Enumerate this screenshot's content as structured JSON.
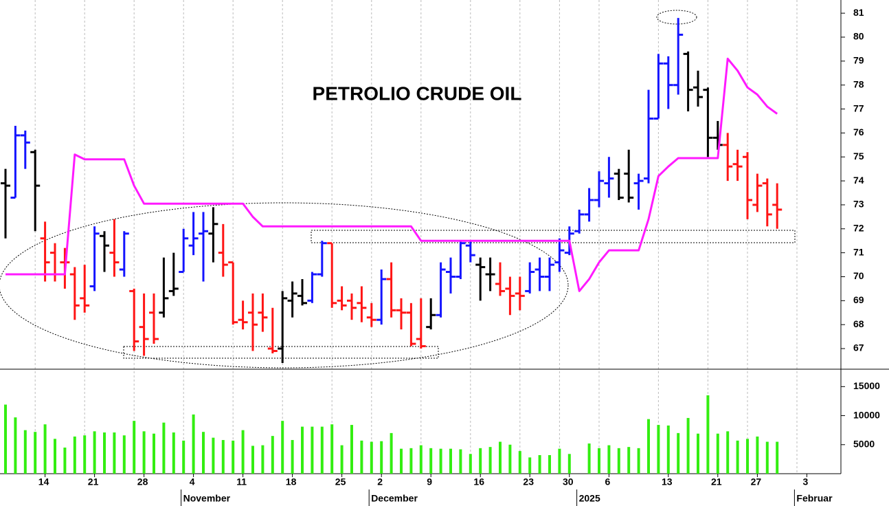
{
  "chart_data": {
    "type": "ohlc",
    "title": "PETROLIO CRUDE OIL",
    "categories": [
      null,
      null,
      null,
      null,
      "14",
      null,
      null,
      null,
      null,
      "21",
      null,
      null,
      null,
      null,
      "28",
      null,
      null,
      null,
      null,
      "4",
      null,
      null,
      null,
      null,
      "11",
      null,
      null,
      null,
      null,
      "18",
      null,
      null,
      null,
      null,
      "25",
      null,
      null,
      null,
      "2",
      null,
      null,
      null,
      null,
      "9",
      null,
      null,
      null,
      null,
      "16",
      null,
      null,
      null,
      null,
      "23",
      null,
      null,
      null,
      "30",
      null,
      null,
      null,
      "6",
      null,
      null,
      null,
      null,
      null,
      "13",
      null,
      null,
      null,
      null,
      "21",
      null,
      null,
      null,
      "27",
      null,
      null,
      null,
      null,
      "3"
    ],
    "month_categories": [
      null,
      null,
      null,
      null,
      null,
      null,
      null,
      null,
      null,
      null,
      null,
      null,
      null,
      null,
      null,
      null,
      null,
      null,
      null,
      "November",
      null,
      null,
      null,
      null,
      null,
      null,
      null,
      null,
      null,
      null,
      null,
      null,
      null,
      null,
      null,
      null,
      null,
      null,
      "December",
      null,
      null,
      null,
      null,
      null,
      null,
      null,
      null,
      null,
      null,
      null,
      null,
      null,
      null,
      null,
      null,
      null,
      null,
      null,
      null,
      "2025",
      null,
      null,
      null,
      null,
      null,
      null,
      null,
      null,
      null,
      null,
      null,
      null,
      null,
      null,
      null,
      null,
      null,
      null,
      null,
      null,
      null,
      "Februar"
    ],
    "open": [
      73.9,
      73.3,
      75.9,
      75.2,
      71.6,
      71.0,
      70.6,
      70.1,
      69.1,
      69.6,
      71.7,
      71.0,
      70.3,
      69.4,
      67.9,
      68.5,
      68.5,
      69.4,
      70.2,
      71.3,
      71.8,
      71.8,
      71.0,
      70.6,
      68.2,
      68.5,
      68.5,
      67.0,
      67.0,
      69.0,
      69.2,
      69.0,
      70.1,
      71.4,
      69.0,
      69.0,
      68.9,
      68.3,
      68.2,
      69.9,
      68.6,
      68.5,
      67.4,
      67.9,
      68.4,
      70.2,
      70.0,
      71.3,
      70.5,
      70.1,
      69.7,
      69.5,
      69.3,
      69.4,
      70.3,
      70.0,
      70.6,
      71.0,
      71.9,
      72.6,
      73.2,
      73.9,
      74.3,
      74.3,
      73.9,
      74.1,
      76.6,
      78.9,
      78.0,
      79.3,
      77.9,
      77.8,
      75.8,
      75.5,
      74.7,
      75.0,
      73.0,
      73.9,
      73.0,
      null,
      null,
      null
    ],
    "high": [
      74.5,
      76.3,
      76.1,
      75.3,
      72.3,
      71.4,
      71.2,
      70.4,
      70.5,
      72.1,
      71.9,
      72.4,
      71.9,
      69.5,
      69.3,
      69.3,
      70.8,
      71.0,
      72.0,
      72.7,
      72.7,
      72.9,
      72.2,
      70.6,
      69.0,
      69.3,
      69.3,
      68.7,
      69.4,
      69.8,
      69.9,
      70.2,
      71.5,
      71.4,
      69.6,
      69.3,
      69.6,
      68.9,
      70.3,
      70.6,
      69.1,
      68.9,
      69.1,
      69.1,
      70.6,
      70.8,
      71.5,
      71.5,
      70.8,
      70.8,
      70.6,
      70.0,
      70.0,
      70.6,
      70.8,
      70.8,
      71.6,
      72.1,
      72.8,
      73.7,
      74.4,
      75.0,
      74.5,
      75.3,
      74.3,
      77.8,
      79.3,
      79.2,
      80.8,
      79.4,
      78.6,
      77.9,
      76.5,
      76.0,
      75.3,
      75.2,
      74.3,
      74.1,
      73.9,
      null,
      null,
      null
    ],
    "low": [
      71.6,
      73.3,
      74.5,
      71.9,
      69.8,
      69.8,
      69.5,
      68.2,
      68.5,
      69.4,
      70.2,
      70.0,
      70.0,
      66.9,
      66.7,
      67.2,
      68.3,
      69.2,
      70.2,
      70.9,
      69.8,
      70.6,
      70.0,
      68.0,
      67.8,
      66.9,
      67.7,
      66.8,
      66.4,
      68.3,
      68.8,
      68.9,
      70.0,
      68.7,
      68.6,
      68.2,
      68.1,
      67.9,
      68.0,
      68.3,
      67.8,
      67.1,
      67.0,
      67.8,
      68.3,
      69.3,
      69.9,
      70.6,
      69.0,
      69.4,
      69.2,
      68.4,
      68.6,
      69.3,
      69.4,
      69.4,
      70.2,
      70.9,
      71.8,
      72.3,
      72.9,
      73.3,
      73.2,
      73.1,
      72.8,
      73.9,
      76.6,
      77.0,
      77.6,
      76.9,
      77.1,
      75.0,
      75.3,
      74.0,
      74.0,
      72.4,
      72.7,
      72.1,
      72.0,
      null,
      null,
      null
    ],
    "close": [
      73.8,
      75.9,
      75.6,
      73.8,
      70.6,
      70.1,
      70.6,
      68.8,
      68.8,
      71.8,
      71.3,
      70.6,
      71.8,
      67.3,
      67.4,
      67.4,
      69.1,
      69.5,
      71.6,
      71.6,
      71.9,
      72.2,
      70.5,
      68.1,
      68.1,
      68.0,
      68.3,
      66.9,
      69.1,
      69.3,
      68.9,
      70.1,
      71.4,
      68.9,
      68.8,
      68.7,
      68.7,
      68.2,
      69.9,
      68.6,
      68.5,
      67.2,
      67.1,
      68.4,
      70.3,
      70.0,
      71.4,
      70.9,
      70.4,
      70.1,
      69.4,
      69.2,
      69.2,
      70.2,
      70.0,
      70.5,
      71.1,
      71.8,
      72.6,
      73.2,
      74.0,
      74.1,
      73.3,
      73.3,
      74.0,
      76.6,
      78.9,
      78.0,
      80.1,
      77.8,
      77.5,
      75.8,
      75.5,
      74.6,
      74.6,
      73.2,
      73.8,
      72.6,
      72.8,
      null,
      null,
      null
    ],
    "colors": [
      "#000000",
      "#1414ff",
      "#1414ff",
      "#000000",
      "#ff1414",
      "#ff1414",
      "#ff1414",
      "#ff1414",
      "#ff1414",
      "#1414ff",
      "#000000",
      "#ff1414",
      "#1414ff",
      "#ff1414",
      "#ff1414",
      "#ff1414",
      "#000000",
      "#000000",
      "#1414ff",
      "#1414ff",
      "#1414ff",
      "#000000",
      "#ff1414",
      "#ff1414",
      "#ff1414",
      "#ff1414",
      "#ff1414",
      "#ff1414",
      "#000000",
      "#000000",
      "#000000",
      "#1414ff",
      "#1414ff",
      "#ff1414",
      "#ff1414",
      "#ff1414",
      "#ff1414",
      "#ff1414",
      "#1414ff",
      "#ff1414",
      "#ff1414",
      "#ff1414",
      "#ff1414",
      "#000000",
      "#1414ff",
      "#1414ff",
      "#1414ff",
      "#1414ff",
      "#000000",
      "#000000",
      "#ff1414",
      "#ff1414",
      "#ff1414",
      "#1414ff",
      "#1414ff",
      "#1414ff",
      "#1414ff",
      "#1414ff",
      "#1414ff",
      "#1414ff",
      "#1414ff",
      "#1414ff",
      "#000000",
      "#000000",
      "#1414ff",
      "#1414ff",
      "#1414ff",
      "#1414ff",
      "#1414ff",
      "#000000",
      "#000000",
      "#000000",
      "#000000",
      "#ff1414",
      "#ff1414",
      "#ff1414",
      "#ff1414",
      "#ff1414",
      "#ff1414",
      null,
      null,
      null
    ],
    "indicator": {
      "color": "#ff1aff",
      "values": [
        70.1,
        70.1,
        70.1,
        70.1,
        70.1,
        70.1,
        70.1,
        75.1,
        74.9,
        74.9,
        74.9,
        74.9,
        74.9,
        73.8,
        73.05,
        73.05,
        73.05,
        73.05,
        73.05,
        73.05,
        73.05,
        73.05,
        73.05,
        73.05,
        73.05,
        72.5,
        72.1,
        72.1,
        72.1,
        72.1,
        72.1,
        72.1,
        72.1,
        72.1,
        72.1,
        72.1,
        72.1,
        72.1,
        72.1,
        72.1,
        72.1,
        72.1,
        71.5,
        71.5,
        71.5,
        71.5,
        71.5,
        71.5,
        71.5,
        71.5,
        71.5,
        71.5,
        71.5,
        71.5,
        71.5,
        71.5,
        71.5,
        71.5,
        69.4,
        69.9,
        70.6,
        71.1,
        71.1,
        71.1,
        71.1,
        72.4,
        74.2,
        74.6,
        74.95,
        74.95,
        74.95,
        74.95,
        74.95,
        79.1,
        78.6,
        77.9,
        77.6,
        77.1,
        76.8,
        null,
        null,
        null
      ]
    },
    "ylim": [
      66.14,
      81.55
    ],
    "yticks": [
      67,
      68,
      69,
      70,
      71,
      72,
      73,
      74,
      75,
      76,
      77,
      78,
      79,
      80,
      81
    ],
    "volume": {
      "type": "bar",
      "color": "#33ee11",
      "values": [
        11900,
        9700,
        7500,
        7200,
        8500,
        6000,
        4500,
        6400,
        6600,
        7300,
        7100,
        7100,
        6600,
        9100,
        7300,
        6900,
        8800,
        7100,
        5700,
        10200,
        7200,
        6200,
        5800,
        5700,
        7500,
        4800,
        4900,
        6500,
        9100,
        5800,
        8100,
        8100,
        8100,
        8500,
        4900,
        8400,
        5700,
        5500,
        5600,
        7000,
        4300,
        4400,
        4900,
        4400,
        4300,
        4300,
        4200,
        3400,
        4400,
        4600,
        5500,
        5000,
        3900,
        2800,
        3200,
        3200,
        4300,
        3400,
        null,
        5200,
        4400,
        4900,
        4400,
        4600,
        4400,
        9400,
        8400,
        8300,
        7000,
        9600,
        6900,
        13500,
        6900,
        7300,
        5700,
        6000,
        6400,
        5500,
        5500,
        null,
        null,
        null
      ],
      "ylim": [
        0,
        18000
      ],
      "yticks": [
        5000,
        10000,
        15000
      ]
    },
    "grid": true
  }
}
